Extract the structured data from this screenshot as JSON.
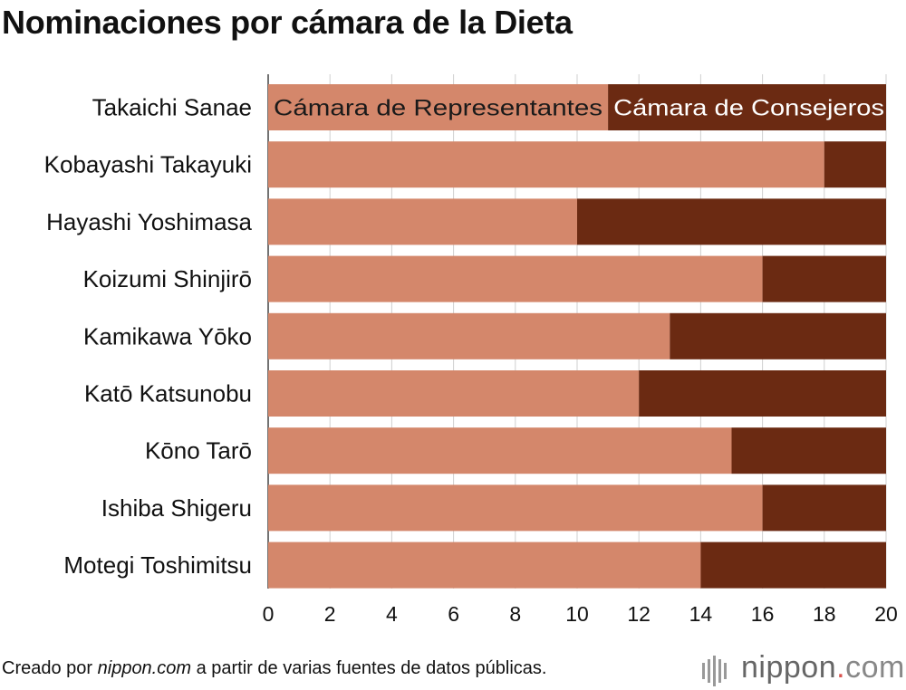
{
  "page": {
    "title": "Nominaciones por cámara de la Dieta",
    "source_prefix": "Creado por ",
    "source_site": "nippon.com",
    "source_suffix": " a partir de varias fuentes de datos públicas.",
    "logo_main": "nippon",
    "logo_dot": ".",
    "logo_com": "com"
  },
  "chart_data": {
    "type": "bar",
    "orientation": "horizontal",
    "stacked": true,
    "title": "Nominaciones por cámara de la Dieta",
    "categories": [
      "Takaichi Sanae",
      "Kobayashi Takayuki",
      "Hayashi Yoshimasa",
      "Koizumi Shinjirō",
      "Kamikawa Yōko",
      "Katō Katsunobu",
      "Kōno Tarō",
      "Ishiba Shigeru",
      "Motegi Toshimitsu"
    ],
    "series": [
      {
        "name": "Cámara de Representantes",
        "color": "#d4876b",
        "label_color": "#1a1a1a",
        "values": [
          11,
          18,
          10,
          16,
          13,
          12,
          15,
          16,
          14
        ]
      },
      {
        "name": "Cámara de Consejeros",
        "color": "#6b2a12",
        "label_color": "#ffffff",
        "values": [
          9,
          2,
          10,
          4,
          7,
          8,
          5,
          4,
          6
        ]
      }
    ],
    "xlim": [
      0,
      20
    ],
    "xticks": [
      0,
      2,
      4,
      6,
      8,
      10,
      12,
      14,
      16,
      18,
      20
    ],
    "grid": true,
    "legend": "inside-first-bar"
  }
}
